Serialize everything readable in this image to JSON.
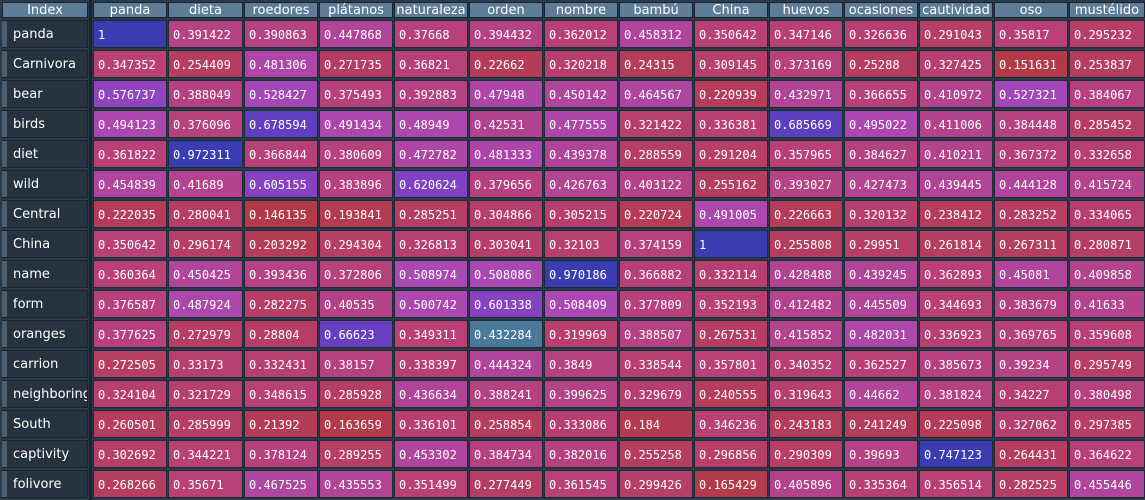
{
  "table": {
    "index_label": "Index",
    "columns": [
      "panda",
      "dieta",
      "roedores",
      "plátanos",
      "naturaleza",
      "orden",
      "nombre",
      "bambú",
      "China",
      "huevos",
      "ocasiones",
      "cautividad",
      "oso",
      "mustélido"
    ],
    "rows": [
      "panda",
      "Carnivora",
      "bear",
      "birds",
      "diet",
      "wild",
      "Central",
      "China",
      "name",
      "form",
      "oranges",
      "carrion",
      "neighboring",
      "South",
      "captivity",
      "folivore"
    ],
    "values": [
      [
        "1",
        "0.391422",
        "0.390863",
        "0.447868",
        "0.37668",
        "0.394432",
        "0.362012",
        "0.458312",
        "0.350642",
        "0.347146",
        "0.326636",
        "0.291043",
        "0.35817",
        "0.295232"
      ],
      [
        "0.347352",
        "0.254409",
        "0.481306",
        "0.271735",
        "0.36821",
        "0.22662",
        "0.320218",
        "0.24315",
        "0.309145",
        "0.373169",
        "0.25288",
        "0.327425",
        "0.151631",
        "0.253837"
      ],
      [
        "0.576737",
        "0.388049",
        "0.528427",
        "0.375493",
        "0.392883",
        "0.47948",
        "0.450142",
        "0.464567",
        "0.220939",
        "0.432971",
        "0.366655",
        "0.410972",
        "0.527321",
        "0.384067"
      ],
      [
        "0.494123",
        "0.376096",
        "0.678594",
        "0.491434",
        "0.48949",
        "0.42531",
        "0.477555",
        "0.321422",
        "0.336381",
        "0.685669",
        "0.495022",
        "0.411006",
        "0.384448",
        "0.285452"
      ],
      [
        "0.361822",
        "0.972311",
        "0.366844",
        "0.380609",
        "0.472782",
        "0.481333",
        "0.439378",
        "0.288559",
        "0.291204",
        "0.357965",
        "0.384627",
        "0.410211",
        "0.367372",
        "0.332658"
      ],
      [
        "0.454839",
        "0.41689",
        "0.605155",
        "0.383896",
        "0.620624",
        "0.379656",
        "0.426763",
        "0.403122",
        "0.255162",
        "0.393027",
        "0.427473",
        "0.439445",
        "0.444128",
        "0.415724"
      ],
      [
        "0.222035",
        "0.280041",
        "0.146135",
        "0.193841",
        "0.285251",
        "0.304866",
        "0.305215",
        "0.220724",
        "0.491005",
        "0.226663",
        "0.320132",
        "0.238412",
        "0.283252",
        "0.334065"
      ],
      [
        "0.350642",
        "0.296174",
        "0.203292",
        "0.294304",
        "0.326813",
        "0.303041",
        "0.32103",
        "0.374159",
        "1",
        "0.255808",
        "0.29951",
        "0.261814",
        "0.267311",
        "0.280871"
      ],
      [
        "0.360364",
        "0.450425",
        "0.393436",
        "0.372806",
        "0.508974",
        "0.508086",
        "0.970186",
        "0.366882",
        "0.332114",
        "0.428488",
        "0.439245",
        "0.362893",
        "0.45081",
        "0.409858"
      ],
      [
        "0.376587",
        "0.487924",
        "0.282275",
        "0.40535",
        "0.500742",
        "0.601338",
        "0.508409",
        "0.377809",
        "0.352193",
        "0.412482",
        "0.445509",
        "0.344693",
        "0.383679",
        "0.41633"
      ],
      [
        "0.377625",
        "0.272979",
        "0.28804",
        "0.66623",
        "0.349311",
        "0.432284",
        "0.319969",
        "0.388507",
        "0.267531",
        "0.415852",
        "0.482031",
        "0.336923",
        "0.369765",
        "0.359608"
      ],
      [
        "0.272505",
        "0.33173",
        "0.332431",
        "0.38157",
        "0.338397",
        "0.444324",
        "0.3849",
        "0.338544",
        "0.357801",
        "0.340352",
        "0.362527",
        "0.385673",
        "0.39234",
        "0.295749"
      ],
      [
        "0.324104",
        "0.321729",
        "0.348615",
        "0.285928",
        "0.436634",
        "0.388241",
        "0.399625",
        "0.329679",
        "0.240555",
        "0.319643",
        "0.44662",
        "0.381824",
        "0.34227",
        "0.380498"
      ],
      [
        "0.260501",
        "0.285999",
        "0.21392",
        "0.163659",
        "0.336101",
        "0.258854",
        "0.333086",
        "0.184",
        "0.346236",
        "0.243183",
        "0.241249",
        "0.225098",
        "0.327062",
        "0.297385"
      ],
      [
        "0.302692",
        "0.344221",
        "0.378124",
        "0.289255",
        "0.453302",
        "0.384734",
        "0.382016",
        "0.255258",
        "0.296856",
        "0.290309",
        "0.39693",
        "0.747123",
        "0.264431",
        "0.364622"
      ],
      [
        "0.268266",
        "0.35671",
        "0.467525",
        "0.435553",
        "0.351499",
        "0.277449",
        "0.361545",
        "0.299426",
        "0.165429",
        "0.405896",
        "0.335364",
        "0.356514",
        "0.282525",
        "0.455446"
      ]
    ],
    "special_cells": [
      {
        "row": 10,
        "col": 5,
        "color": "#4a7a9a"
      }
    ]
  }
}
